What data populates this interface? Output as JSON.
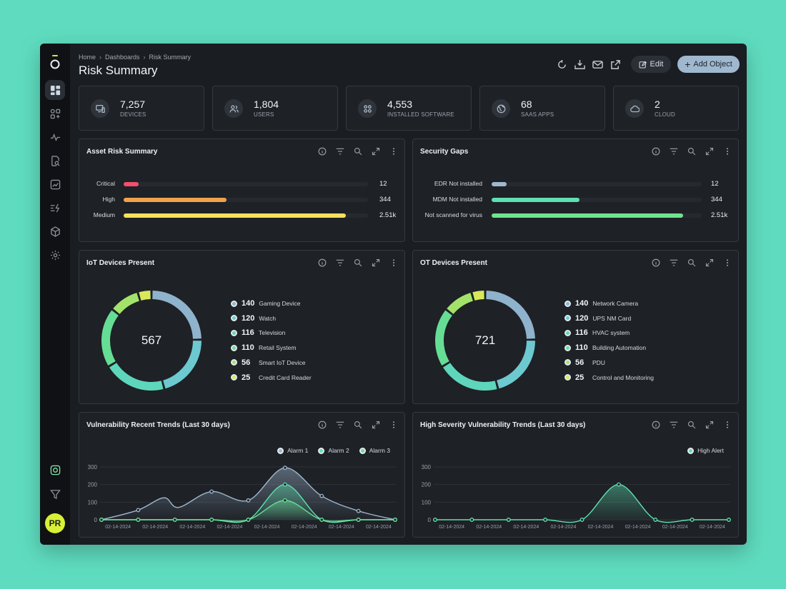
{
  "breadcrumb": [
    "Home",
    "Dashboards",
    "Risk Summary"
  ],
  "page_title": "Risk Summary",
  "actions": {
    "edit": "Edit",
    "add": "Add Object"
  },
  "avatar": "PR",
  "stats": [
    {
      "value": "7,257",
      "label": "DEVICES",
      "icon": "devices-icon"
    },
    {
      "value": "1,804",
      "label": "USERS",
      "icon": "users-icon"
    },
    {
      "value": "4,553",
      "label": "INSTALLED SOFTWARE",
      "icon": "apps-icon"
    },
    {
      "value": "68",
      "label": "SAAS APPS",
      "icon": "globe-icon"
    },
    {
      "value": "2",
      "label": "CLOUD",
      "icon": "cloud-icon"
    }
  ],
  "asset_risk": {
    "title": "Asset Risk Summary",
    "rows": [
      {
        "label": "Critical",
        "value": "12",
        "fraction": 0.06,
        "color": "#f04f6e"
      },
      {
        "label": "High",
        "value": "344",
        "fraction": 0.42,
        "color": "#f2a24a"
      },
      {
        "label": "Medium",
        "value": "2.51k",
        "fraction": 0.91,
        "color": "#f5e05a"
      }
    ]
  },
  "security_gaps": {
    "title": "Security Gaps",
    "rows": [
      {
        "label": "EDR Not installed",
        "value": "12",
        "fraction": 0.07,
        "color": "#9fb8cf"
      },
      {
        "label": "MDM Not installed",
        "value": "344",
        "fraction": 0.42,
        "color": "#5ee0b0"
      },
      {
        "label": "Not scanned for virus",
        "value": "2.51k",
        "fraction": 0.91,
        "color": "#6fe38f"
      }
    ]
  },
  "iot": {
    "title": "IoT Devices Present",
    "total": "567",
    "items": [
      {
        "count": 140,
        "label": "Gaming Device",
        "color": "#8fb3cc"
      },
      {
        "count": 120,
        "label": "Watch",
        "color": "#6cc9cf"
      },
      {
        "count": 116,
        "label": "Television",
        "color": "#5ed6bb"
      },
      {
        "count": 110,
        "label": "Retail System",
        "color": "#66dd95"
      },
      {
        "count": 56,
        "label": "Smart IoT Device",
        "color": "#a3e36a"
      },
      {
        "count": 25,
        "label": "Credit Card Reader",
        "color": "#d8e85a"
      }
    ]
  },
  "ot": {
    "title": "OT Devices Present",
    "total": "721",
    "items": [
      {
        "count": 140,
        "label": "Network Camera",
        "color": "#8fb3cc"
      },
      {
        "count": 120,
        "label": "UPS NM Card",
        "color": "#6cc9cf"
      },
      {
        "count": 116,
        "label": "HVAC system",
        "color": "#5ed6bb"
      },
      {
        "count": 110,
        "label": "Building Automation",
        "color": "#66dd95"
      },
      {
        "count": 56,
        "label": "PDU",
        "color": "#a3e36a"
      },
      {
        "count": 25,
        "label": "Control and Monitoring",
        "color": "#d8e85a"
      }
    ]
  },
  "chart_data": [
    {
      "type": "line",
      "title": "Vulnerability Recent Trends (Last 30 days)",
      "xlabel": "",
      "ylabel": "",
      "x_ticks": [
        "02-14-2024",
        "02-14-2024",
        "02-14-2024",
        "02-14-2024",
        "02-14-2024",
        "02-14-2024",
        "02-14-2024",
        "02-14-2024"
      ],
      "yticks": [
        0,
        100,
        200,
        300
      ],
      "ylim": [
        0,
        300
      ],
      "legend": "top-right",
      "series": [
        {
          "name": "Alarm 1",
          "color": "#9fb8cf",
          "points": [
            [
              0,
              0
            ],
            [
              1,
              55
            ],
            [
              1.7,
              125
            ],
            [
              2.1,
              70
            ],
            [
              3,
              160
            ],
            [
              4,
              110
            ],
            [
              5,
              295
            ],
            [
              6,
              135
            ],
            [
              7,
              50
            ],
            [
              8,
              0
            ]
          ]
        },
        {
          "name": "Alarm 2",
          "color": "#5ee0b0",
          "points": [
            [
              0,
              0
            ],
            [
              1,
              0
            ],
            [
              2,
              0
            ],
            [
              3,
              0
            ],
            [
              4,
              0
            ],
            [
              5,
              200
            ],
            [
              6,
              0
            ],
            [
              7,
              0
            ],
            [
              8,
              0
            ]
          ]
        },
        {
          "name": "Alarm 3",
          "color": "#66dd95",
          "points": [
            [
              0,
              0
            ],
            [
              1,
              0
            ],
            [
              2,
              0
            ],
            [
              3,
              0
            ],
            [
              4,
              0
            ],
            [
              5,
              110
            ],
            [
              6,
              0
            ],
            [
              7,
              0
            ],
            [
              8,
              0
            ]
          ]
        }
      ]
    },
    {
      "type": "line",
      "title": "High Severity Vulnerability Trends (Last 30 days)",
      "xlabel": "",
      "ylabel": "",
      "x_ticks": [
        "02-14-2024",
        "02-14-2024",
        "02-14-2024",
        "02-14-2024",
        "02-14-2024",
        "02-14-2024",
        "02-14-2024",
        "02-14-2024"
      ],
      "yticks": [
        0,
        100,
        200,
        300
      ],
      "ylim": [
        0,
        300
      ],
      "legend": "top-right",
      "series": [
        {
          "name": "High Alert",
          "color": "#5ee0b0",
          "points": [
            [
              0,
              0
            ],
            [
              1,
              0
            ],
            [
              2,
              0
            ],
            [
              3,
              0
            ],
            [
              4,
              0
            ],
            [
              5,
              200
            ],
            [
              6,
              0
            ],
            [
              7,
              0
            ],
            [
              8,
              0
            ]
          ]
        }
      ]
    }
  ]
}
